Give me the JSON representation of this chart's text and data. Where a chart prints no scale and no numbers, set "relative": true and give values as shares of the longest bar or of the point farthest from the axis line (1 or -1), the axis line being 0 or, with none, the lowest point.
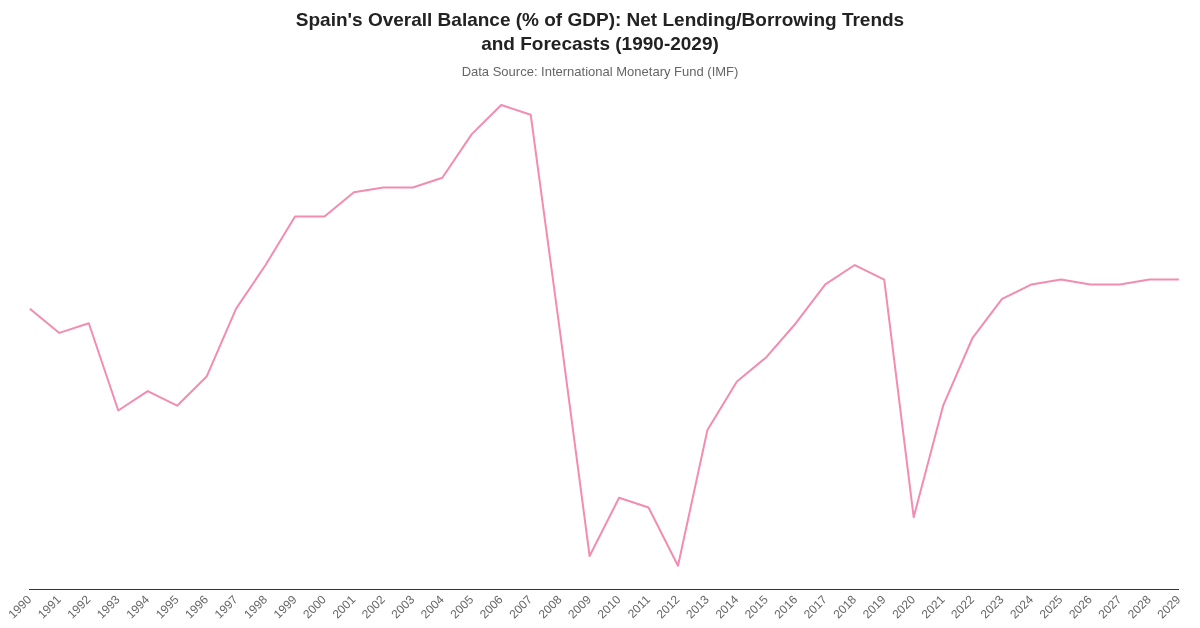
{
  "chart_data": {
    "type": "line",
    "title": "Spain's Overall Balance (% of GDP): Net Lending/Borrowing Trends and Forecasts (1990-2029)",
    "subtitle": "Data Source: International Monetary Fund (IMF)",
    "relative": true,
    "grid": false,
    "legend": false,
    "marker": "none",
    "categories": [
      "1990",
      "1991",
      "1992",
      "1993",
      "1994",
      "1995",
      "1996",
      "1997",
      "1998",
      "1999",
      "2000",
      "2001",
      "2002",
      "2003",
      "2004",
      "2005",
      "2006",
      "2007",
      "2008",
      "2009",
      "2010",
      "2011",
      "2012",
      "2013",
      "2014",
      "2015",
      "2016",
      "2017",
      "2018",
      "2019",
      "2020",
      "2021",
      "2022",
      "2023",
      "2024",
      "2025",
      "2026",
      "2027",
      "2028",
      "2029"
    ],
    "series": [
      {
        "color": "#f28cb1",
        "values": [
          0.58,
          0.53,
          0.55,
          0.37,
          0.41,
          0.38,
          0.44,
          0.58,
          0.67,
          0.77,
          0.77,
          0.82,
          0.83,
          0.83,
          0.85,
          0.94,
          1,
          0.98,
          0.53,
          0.07,
          0.19,
          0.17,
          0.05,
          0.33,
          0.43,
          0.48,
          0.55,
          0.63,
          0.67,
          0.64,
          0.15,
          0.38,
          0.52,
          0.6,
          0.63,
          0.64,
          0.63,
          0.63,
          0.64,
          0.64
        ]
      }
    ]
  }
}
